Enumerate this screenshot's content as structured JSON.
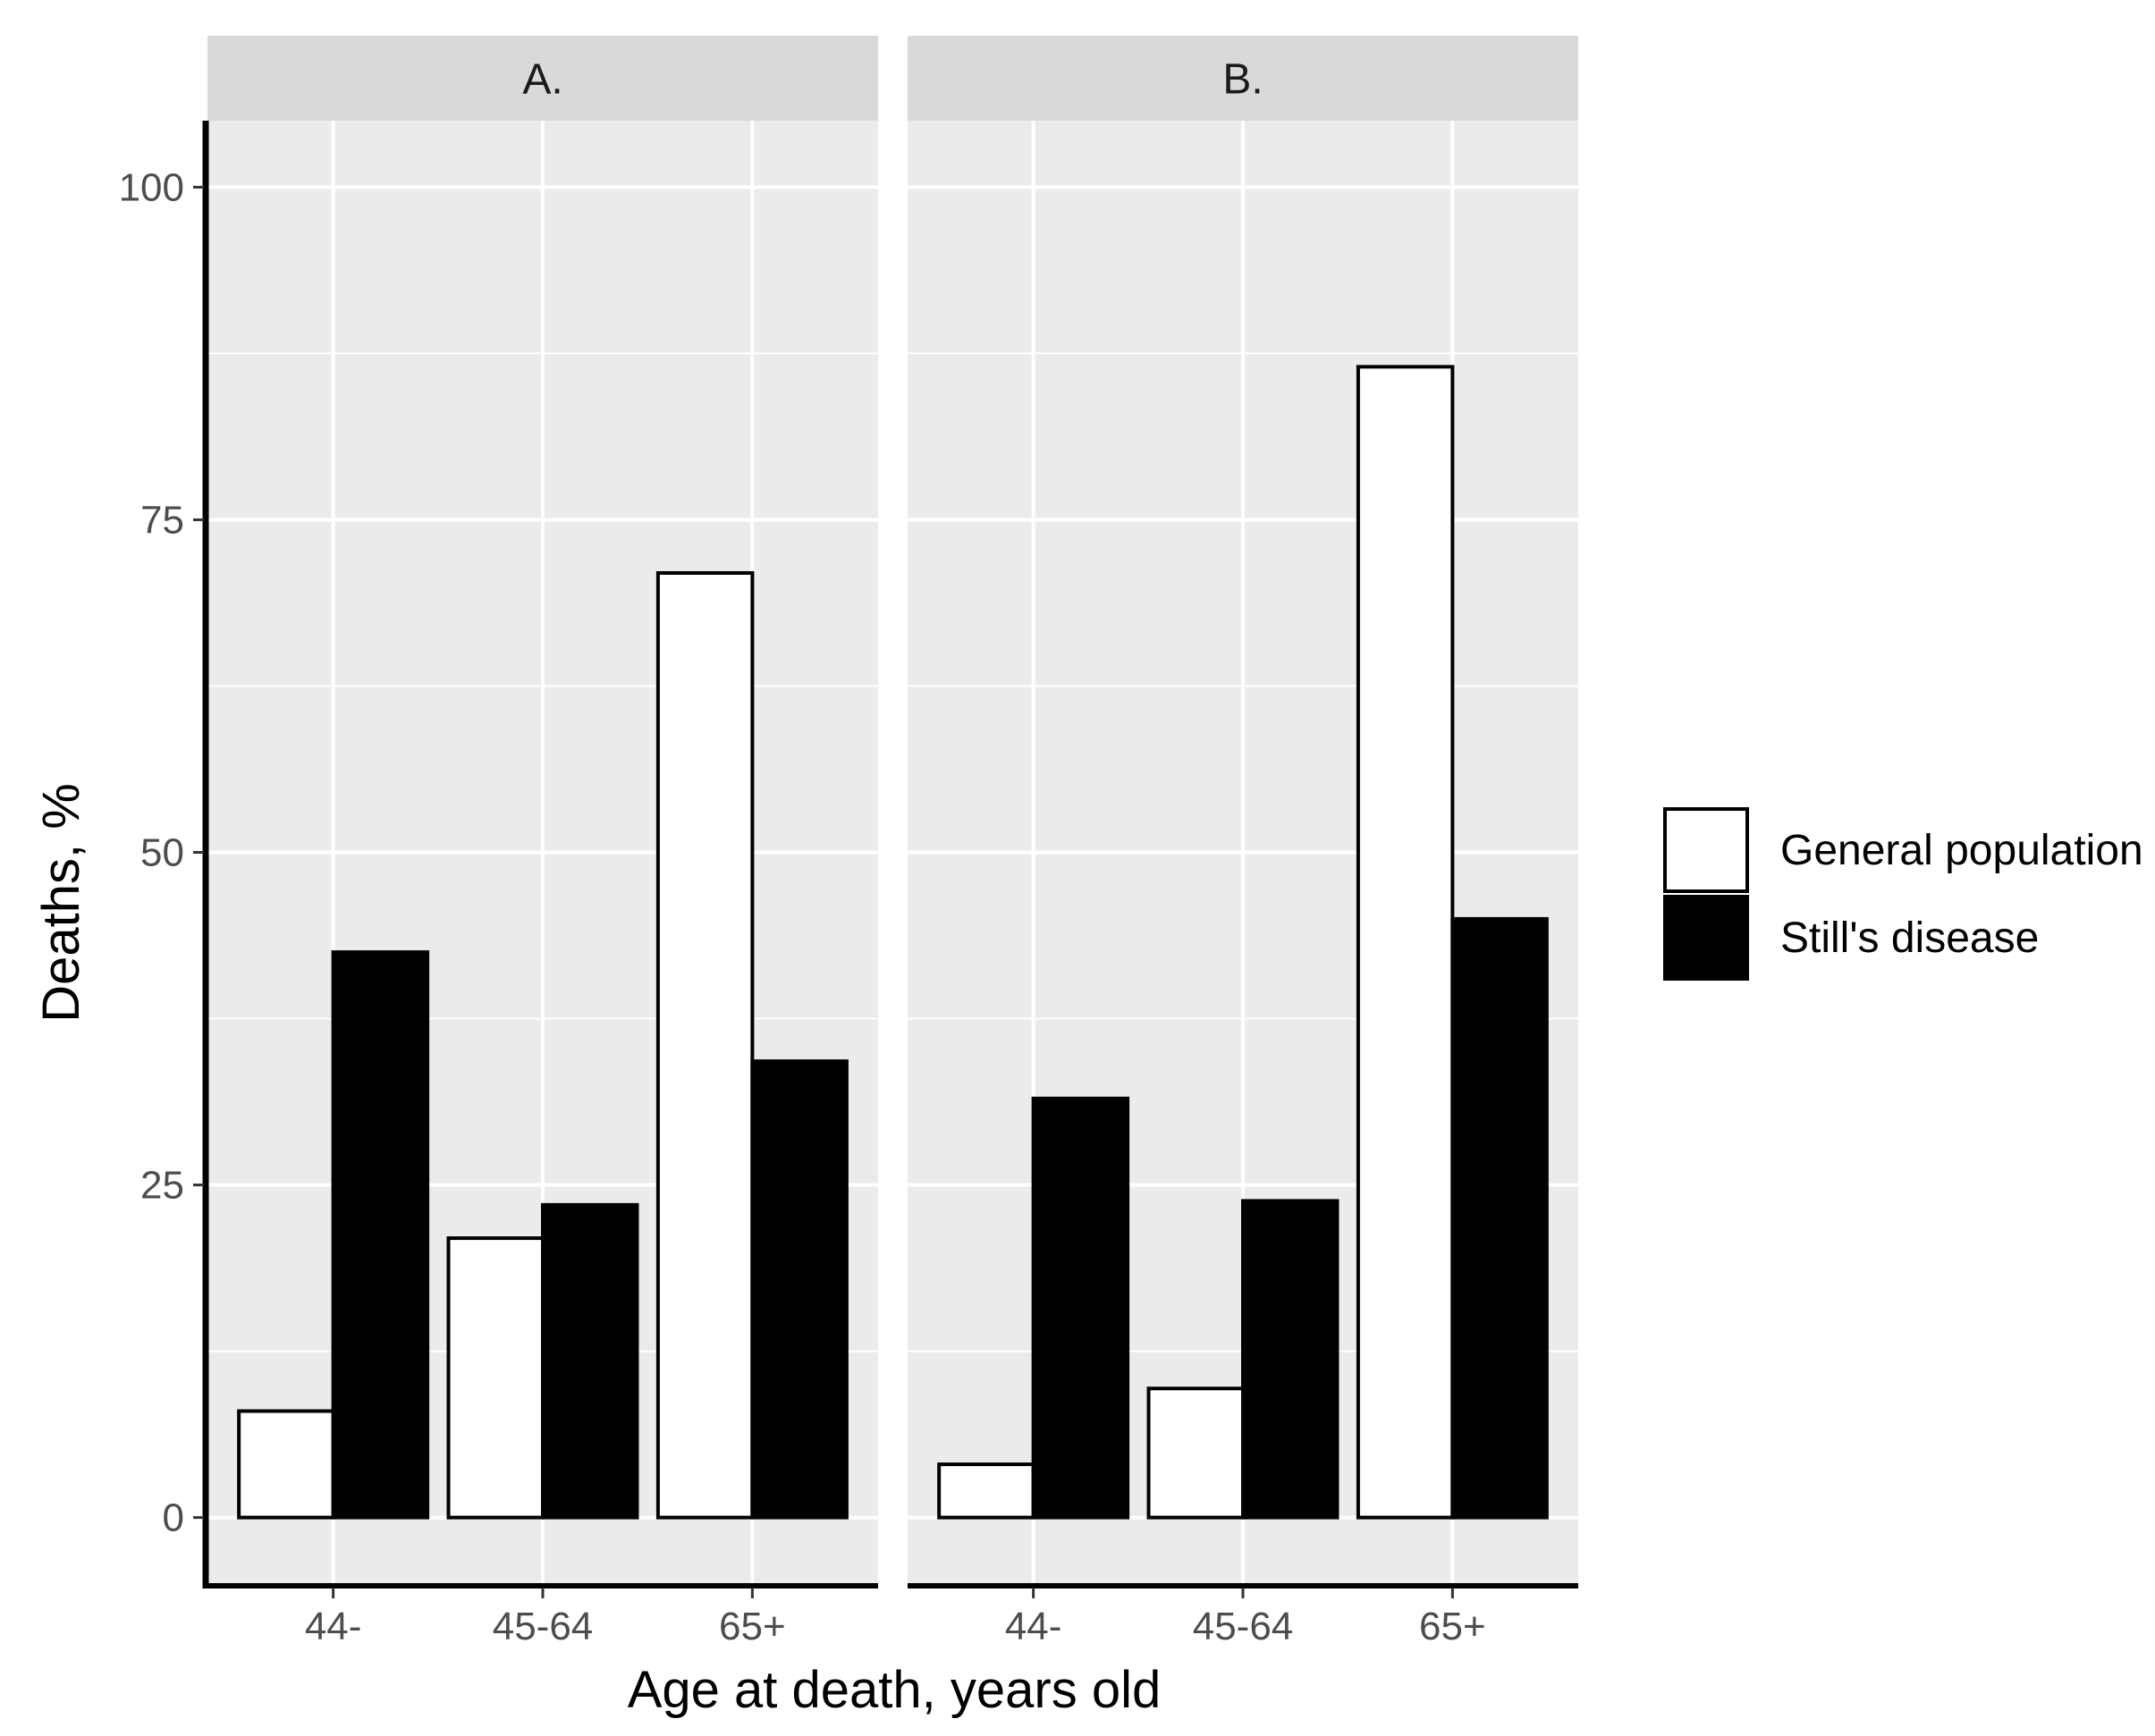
{
  "chart_data": {
    "type": "bar",
    "facets": [
      {
        "label": "A.",
        "categories": [
          "44-",
          "45-64",
          "65+"
        ],
        "series": [
          {
            "name": "General population",
            "values": [
              8,
              21,
              71
            ]
          },
          {
            "name": "Still's disease",
            "values": [
              42.5,
              23.5,
              34.3
            ]
          }
        ]
      },
      {
        "label": "B.",
        "categories": [
          "44-",
          "45-64",
          "65+"
        ],
        "series": [
          {
            "name": "General population",
            "values": [
              4,
              9.7,
              86.5
            ]
          },
          {
            "name": "Still's disease",
            "values": [
              31.5,
              23.8,
              45
            ]
          }
        ]
      }
    ],
    "series_colors": {
      "General population": "#ffffff",
      "Still's disease": "#000000"
    },
    "panel_background": "#ebebeb",
    "strip_background": "#d9d9d9",
    "grid": true,
    "xlabel": "Age at death, years old",
    "ylabel": "Deaths, %",
    "ylim": [
      -5,
      105
    ],
    "yticks": [
      0,
      25,
      50,
      75,
      100
    ],
    "legend": {
      "position": "right",
      "entries": [
        "General population",
        "Still's disease"
      ]
    }
  }
}
